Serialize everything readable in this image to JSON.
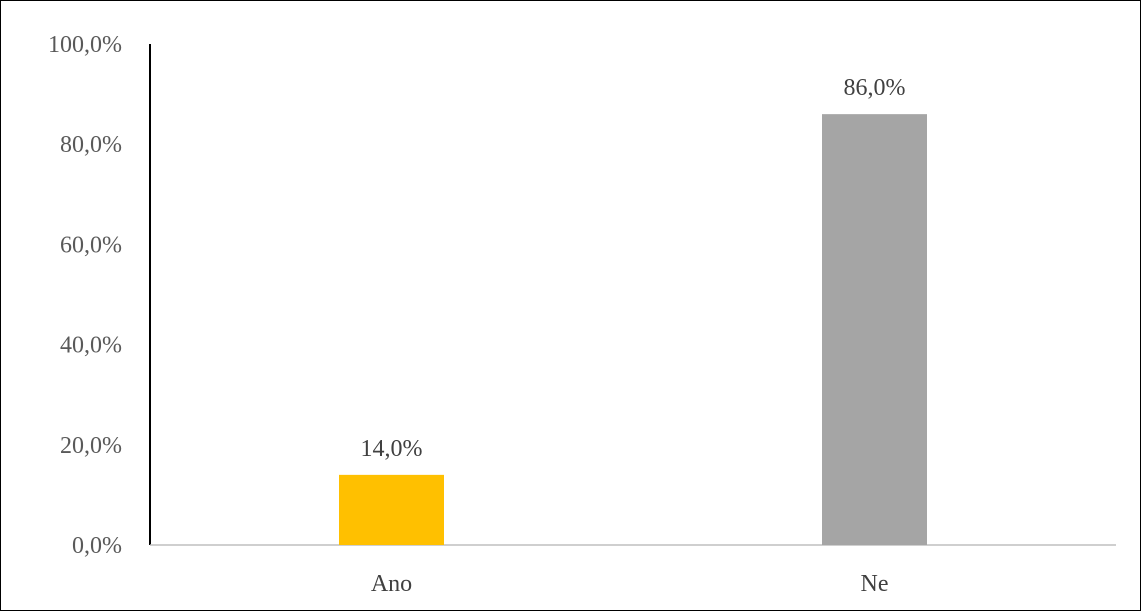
{
  "chart_data": {
    "type": "bar",
    "categories": [
      "Ano",
      "Ne"
    ],
    "values": [
      14.0,
      86.0
    ],
    "value_labels": [
      "14,0%",
      "86,0%"
    ],
    "bar_colors": [
      "#ffc000",
      "#a5a5a5"
    ],
    "y_ticks": [
      "0,0%",
      "20,0%",
      "40,0%",
      "60,0%",
      "80,0%",
      "100,0%"
    ],
    "ylim": [
      0,
      100
    ],
    "grid": false,
    "legend": "none"
  }
}
